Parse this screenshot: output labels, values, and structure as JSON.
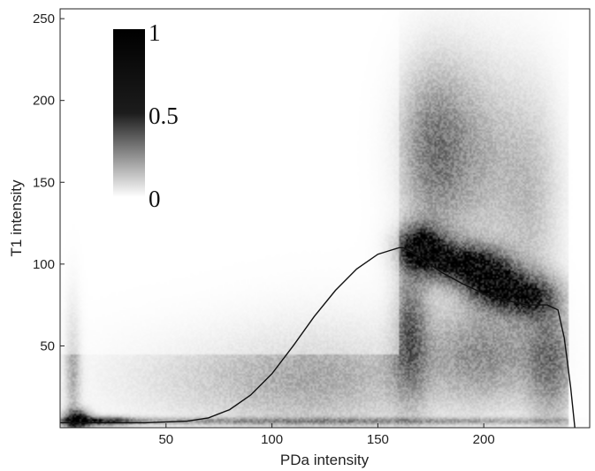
{
  "chart_data": {
    "type": "heatmap",
    "title": "",
    "xlabel": "PDa intensity",
    "ylabel": "T1 intensity",
    "xlim": [
      0,
      250
    ],
    "ylim": [
      0,
      256
    ],
    "xticks": [
      50,
      100,
      150,
      200
    ],
    "yticks": [
      50,
      100,
      150,
      200,
      250
    ],
    "grid": false,
    "colormap": {
      "name": "gray-inverted",
      "min_color": "#ffffff",
      "max_color": "#000000",
      "ticks": [
        {
          "value": 0,
          "label": "0"
        },
        {
          "value": 0.5,
          "label": "0.5"
        },
        {
          "value": 1,
          "label": "1"
        }
      ],
      "placement": "top-left"
    },
    "density_blobs": [
      {
        "x": 170,
        "y": 110,
        "sx": 8,
        "sy": 9,
        "weight": 1.0
      },
      {
        "x": 190,
        "y": 100,
        "sx": 12,
        "sy": 9,
        "weight": 0.85
      },
      {
        "x": 205,
        "y": 88,
        "sx": 9,
        "sy": 10,
        "weight": 0.85
      },
      {
        "x": 222,
        "y": 80,
        "sx": 9,
        "sy": 9,
        "weight": 0.7
      },
      {
        "x": 175,
        "y": 170,
        "sx": 11,
        "sy": 35,
        "weight": 0.42
      },
      {
        "x": 195,
        "y": 165,
        "sx": 15,
        "sy": 40,
        "weight": 0.3
      },
      {
        "x": 222,
        "y": 140,
        "sx": 10,
        "sy": 45,
        "weight": 0.22
      },
      {
        "x": 165,
        "y": 60,
        "sx": 6,
        "sy": 30,
        "weight": 0.5
      },
      {
        "x": 200,
        "y": 45,
        "sx": 20,
        "sy": 22,
        "weight": 0.42
      },
      {
        "x": 232,
        "y": 40,
        "sx": 8,
        "sy": 25,
        "weight": 0.45
      },
      {
        "x": 95,
        "y": 30,
        "sx": 45,
        "sy": 22,
        "weight": 0.2
      },
      {
        "x": 130,
        "y": 35,
        "sx": 30,
        "sy": 26,
        "weight": 0.18
      },
      {
        "x": 8,
        "y": 5,
        "sx": 4,
        "sy": 4,
        "weight": 0.95
      },
      {
        "x": 20,
        "y": 4,
        "sx": 10,
        "sy": 2,
        "weight": 0.6
      },
      {
        "x": 6,
        "y": 40,
        "sx": 2.5,
        "sy": 28,
        "weight": 0.3
      },
      {
        "x": 120,
        "y": 4,
        "sx": 120,
        "sy": 1.5,
        "weight": 0.35
      }
    ],
    "curve": {
      "x": [
        0,
        20,
        40,
        60,
        70,
        80,
        90,
        100,
        110,
        120,
        130,
        140,
        150,
        155,
        160,
        162,
        165,
        170,
        180,
        190,
        200,
        210,
        220,
        230,
        235,
        238,
        241,
        243
      ],
      "y": [
        3,
        3,
        3,
        4,
        6,
        11,
        20,
        33,
        50,
        68,
        84,
        97,
        106,
        108,
        110,
        110,
        108,
        104,
        95,
        88,
        82,
        78,
        75,
        75,
        72,
        55,
        25,
        0
      ]
    }
  }
}
